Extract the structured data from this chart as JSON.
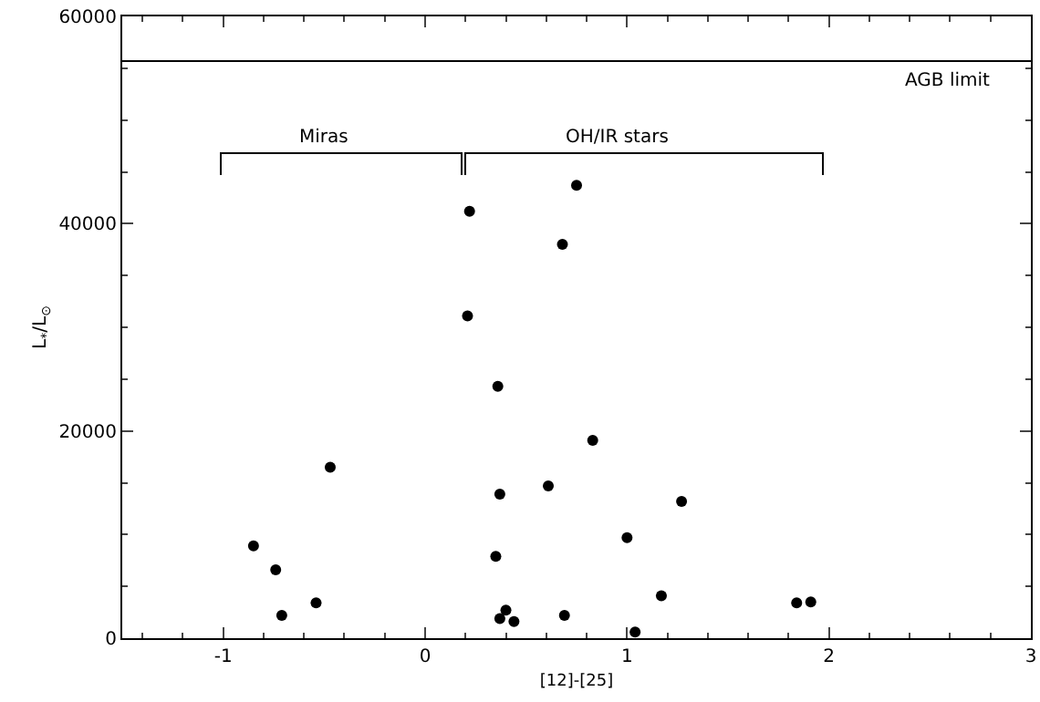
{
  "chart_data": {
    "type": "scatter",
    "xlabel": "[12]-[25]",
    "ylabel": "L$_{*}$/L$_{⊙}$",
    "x": [
      0.36,
      0.83,
      -0.47,
      0.37,
      0.61,
      1.27,
      -0.85,
      1.0,
      -0.74,
      0.35,
      -0.54,
      -0.71,
      1.17,
      1.84,
      1.91,
      0.4,
      0.37,
      0.44,
      0.69,
      1.04,
      0.75,
      0.22,
      0.68,
      0.21
    ],
    "values": [
      24300,
      19100,
      16500,
      13900,
      14700,
      13200,
      8900,
      9700,
      6600,
      7900,
      3400,
      2200,
      4100,
      3400,
      3500,
      2700,
      1900,
      1600,
      2200,
      600,
      43700,
      41200,
      38000,
      31100
    ],
    "color": "#000000",
    "marker": "circle",
    "xlim": [
      -1.5,
      3
    ],
    "xticks": [
      -1,
      0,
      1,
      2,
      3
    ],
    "ylim": [
      0,
      60000
    ],
    "yticks": [
      0,
      20000,
      40000,
      60000
    ],
    "grid": false,
    "ref_lines": [
      {
        "axis": "y",
        "value": 55700,
        "label": "AGB limit",
        "color": "#000000",
        "line_style": "solid"
      }
    ],
    "annotations": [
      "Miras",
      "OH/IR stars"
    ]
  }
}
